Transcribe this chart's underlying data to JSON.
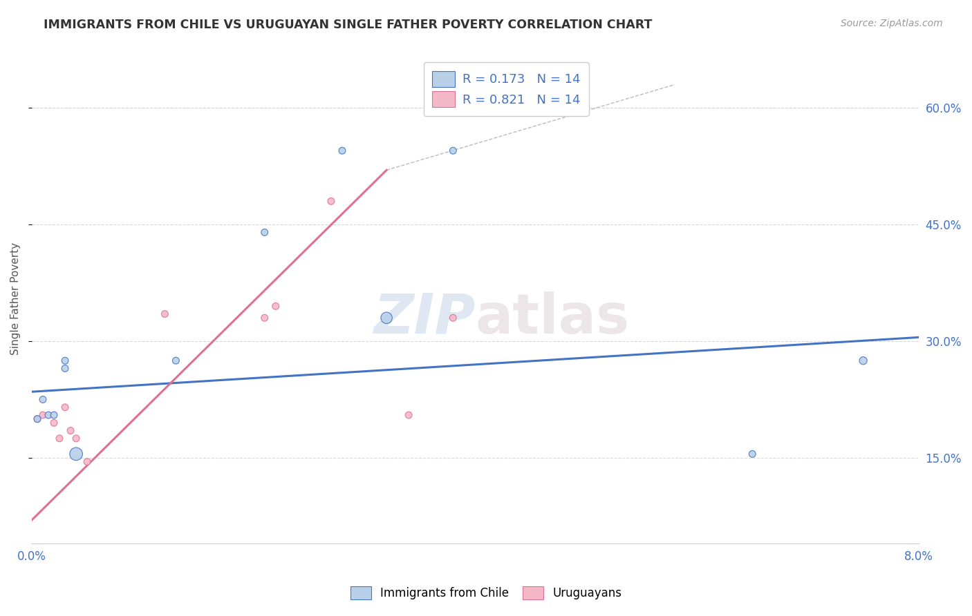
{
  "title": "IMMIGRANTS FROM CHILE VS URUGUAYAN SINGLE FATHER POVERTY CORRELATION CHART",
  "source": "Source: ZipAtlas.com",
  "ylabel": "Single Father Poverty",
  "xlim": [
    0.0,
    0.08
  ],
  "ylim": [
    0.04,
    0.67
  ],
  "xticks": [
    0.0,
    0.01,
    0.02,
    0.03,
    0.04,
    0.05,
    0.06,
    0.07,
    0.08
  ],
  "xticklabels": [
    "0.0%",
    "",
    "",
    "",
    "",
    "",
    "",
    "",
    "8.0%"
  ],
  "yticks_right": [
    0.15,
    0.3,
    0.45,
    0.6
  ],
  "ytick_right_labels": [
    "15.0%",
    "30.0%",
    "45.0%",
    "60.0%"
  ],
  "watermark_zip": "ZIP",
  "watermark_atlas": "atlas",
  "blue_color": "#b8d0e8",
  "pink_color": "#f4b8c8",
  "line_blue": "#4472c4",
  "line_pink": "#e07090",
  "label1": "Immigrants from Chile",
  "label2": "Uruguayans",
  "blue_scatter_x": [
    0.0005,
    0.001,
    0.0015,
    0.002,
    0.003,
    0.003,
    0.004,
    0.013,
    0.021,
    0.028,
    0.032,
    0.038,
    0.065,
    0.075
  ],
  "blue_scatter_y": [
    0.2,
    0.225,
    0.205,
    0.205,
    0.265,
    0.275,
    0.155,
    0.275,
    0.44,
    0.545,
    0.33,
    0.545,
    0.155,
    0.275
  ],
  "blue_scatter_size": [
    50,
    50,
    50,
    50,
    50,
    50,
    180,
    50,
    50,
    50,
    140,
    50,
    50,
    65
  ],
  "pink_scatter_x": [
    0.0005,
    0.001,
    0.002,
    0.0025,
    0.003,
    0.0035,
    0.004,
    0.005,
    0.012,
    0.021,
    0.022,
    0.027,
    0.034,
    0.038
  ],
  "pink_scatter_y": [
    0.2,
    0.205,
    0.195,
    0.175,
    0.215,
    0.185,
    0.175,
    0.145,
    0.335,
    0.33,
    0.345,
    0.48,
    0.205,
    0.33
  ],
  "pink_scatter_size": [
    50,
    50,
    50,
    50,
    50,
    50,
    50,
    50,
    50,
    50,
    50,
    50,
    50,
    50
  ],
  "blue_line_x": [
    0.0,
    0.08
  ],
  "blue_line_y": [
    0.235,
    0.305
  ],
  "pink_line_x": [
    0.0,
    0.032
  ],
  "pink_line_y": [
    0.07,
    0.52
  ],
  "dashed_line_x": [
    0.032,
    0.058
  ],
  "dashed_line_y": [
    0.52,
    0.63
  ]
}
